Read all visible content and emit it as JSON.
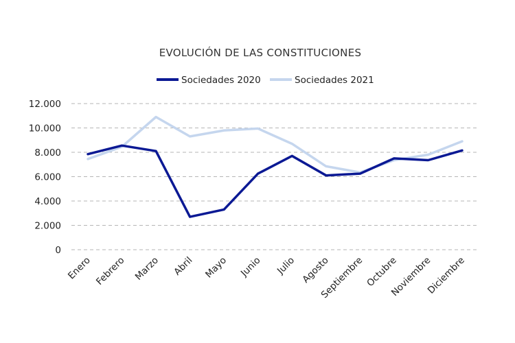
{
  "chart_data": {
    "type": "line",
    "title": "EVOLUCIÓN DE LAS CONSTITUCIONES",
    "xlabel": "",
    "ylabel": "",
    "categories": [
      "Enero",
      "Febrero",
      "Marzo",
      "Abril",
      "Mayo",
      "Junio",
      "Julio",
      "Agosto",
      "Septiembre",
      "Octubre",
      "Noviembre",
      "Diciembre"
    ],
    "series": [
      {
        "name": "Sociedades 2020",
        "color": "#0b1994",
        "values": [
          7850,
          8550,
          8100,
          2700,
          3300,
          6250,
          7700,
          6100,
          6250,
          7500,
          7350,
          8150
        ]
      },
      {
        "name": "Sociedades 2021",
        "color": "#c5d6ee",
        "values": [
          7450,
          8450,
          10900,
          9300,
          9800,
          9950,
          8700,
          6850,
          6350,
          7350,
          7800,
          8900
        ]
      }
    ],
    "ylim": [
      0,
      12000
    ],
    "yticks": [
      "0",
      "2.000",
      "4.000",
      "6.000",
      "8.000",
      "10.000",
      "12.000"
    ],
    "grid": true,
    "legend_position": "top-center"
  }
}
